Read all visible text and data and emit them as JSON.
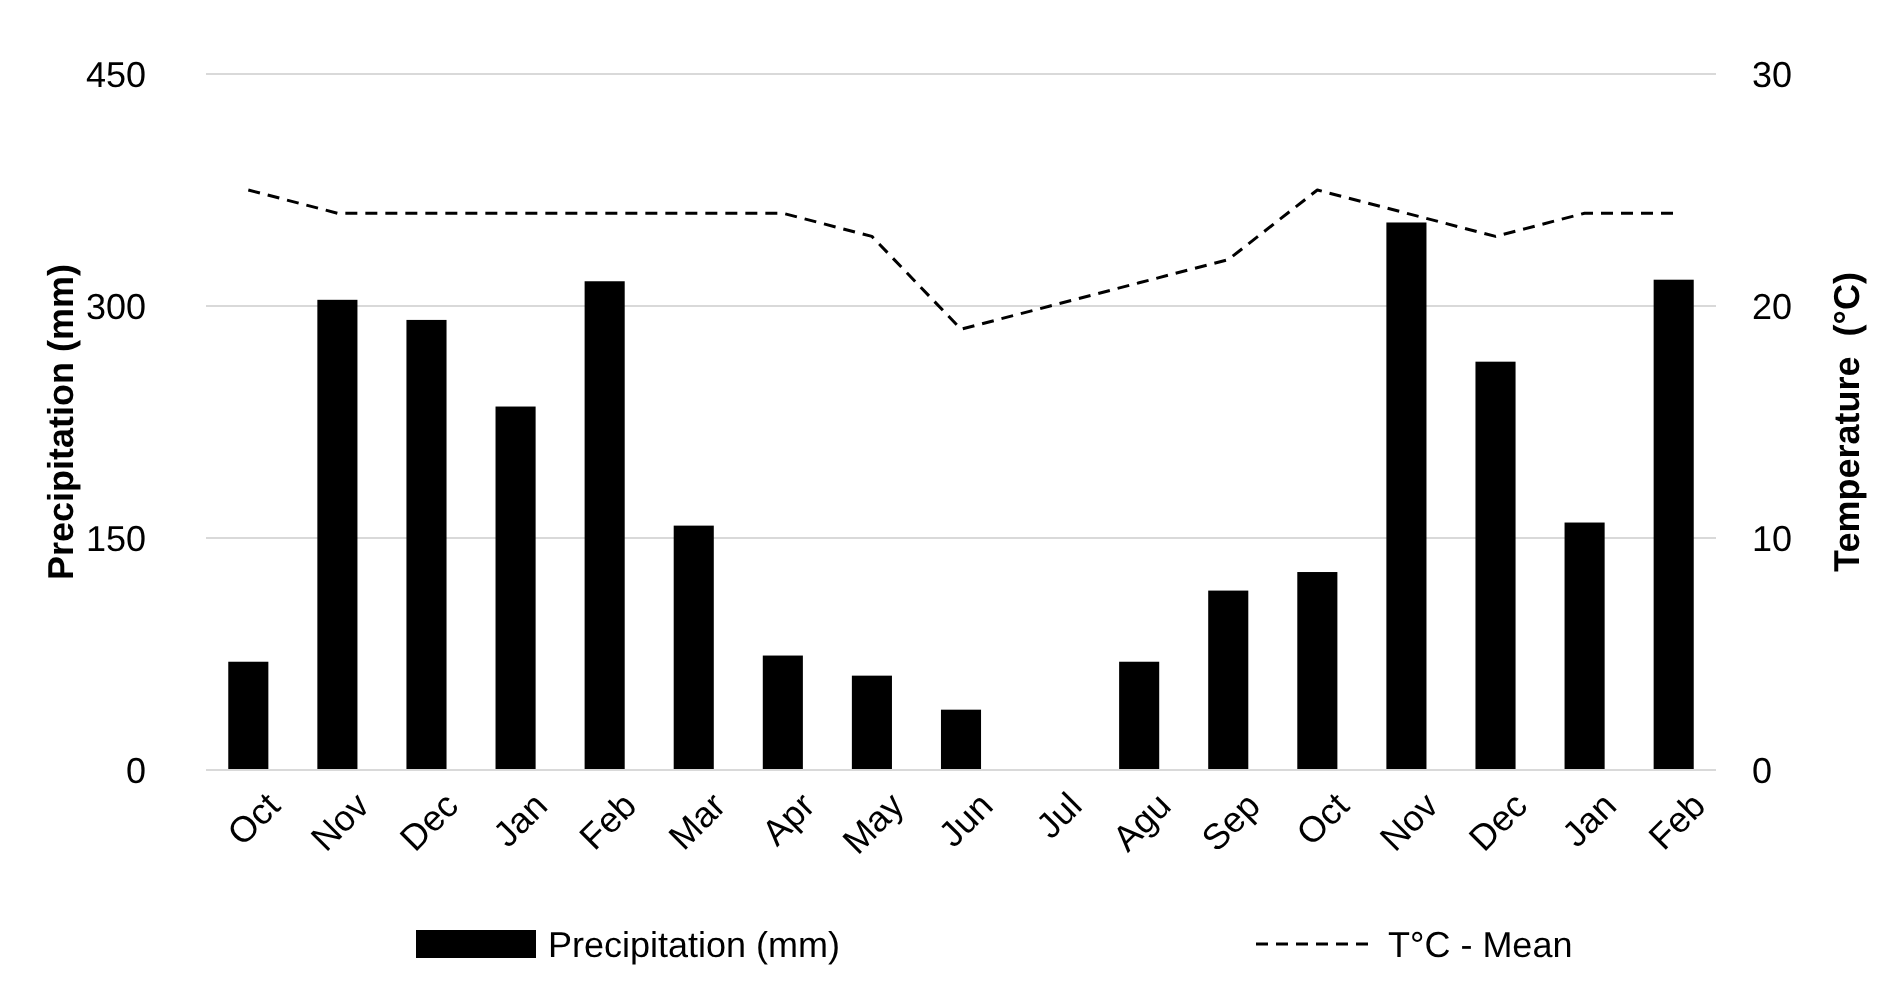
{
  "chart_data": {
    "type": "bar",
    "categories": [
      "Oct",
      "Nov",
      "Dec",
      "Jan",
      "Feb",
      "Mar",
      "Apr",
      "May",
      "Jun",
      "Jul",
      "Agu",
      "Sep",
      "Oct",
      "Nov",
      "Dec",
      "Jan",
      "Feb"
    ],
    "ylabel": "Precipitation (mm)",
    "y2label": "Temperature  (°C)",
    "ylim": [
      0,
      450
    ],
    "yticks": [
      0,
      150,
      300,
      450
    ],
    "y2lim": [
      0,
      30
    ],
    "y2ticks": [
      0,
      10,
      20,
      30
    ],
    "grid": "y",
    "legend": "bottom",
    "series": [
      {
        "name": "Precipitation (mm)",
        "color": "#000000",
        "values": [
          70,
          304,
          291,
          235,
          316,
          158,
          74,
          61,
          39,
          0,
          70,
          116,
          128,
          354,
          264,
          160,
          317
        ]
      },
      {
        "name": "T°C - Mean",
        "type": "line",
        "axis": "y2",
        "color": "#000000",
        "line_style": "dashed",
        "marker": "none",
        "values": [
          25,
          24,
          24,
          24,
          24,
          24,
          24,
          23,
          19,
          20,
          21,
          22,
          25,
          24,
          23,
          24,
          24
        ]
      }
    ]
  }
}
